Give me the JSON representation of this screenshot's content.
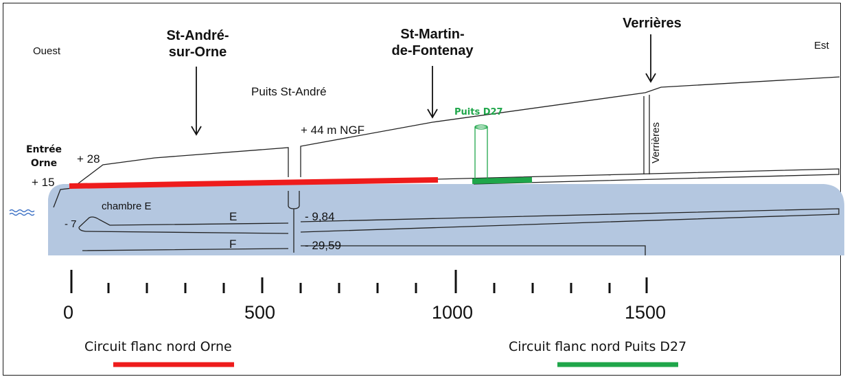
{
  "directions": {
    "west": "Ouest",
    "east": "Est"
  },
  "towns": {
    "st_andre": {
      "line1": "St-André-",
      "line2": "sur-Orne"
    },
    "st_martin": {
      "line1": "St-Martin-",
      "line2": "de-Fontenay"
    },
    "verrieres": "Verrières"
  },
  "labels": {
    "puits_st_andre": "Puits St-André",
    "elev_44": "+ 44 m NGF",
    "puits_d27": "Puits D27",
    "entree_orne_1": "Entrée",
    "entree_orne_2": "Orne",
    "elev_28": "+ 28",
    "elev_15": "+ 15",
    "chambre_e": "chambre E",
    "elev_minus7": "- 7",
    "level_e": "E",
    "level_f": "F",
    "depth_e": "- 9,84",
    "depth_f": "- 29,59",
    "verrieres_shaft": "Verrières"
  },
  "scale": {
    "ticks": [
      "0",
      "500",
      "1000",
      "1500"
    ]
  },
  "legend": {
    "orne": {
      "label": "Circuit flanc nord Orne",
      "color": "#ee1c1c"
    },
    "d27": {
      "label": "Circuit flanc nord Puits D27",
      "color": "#1fa64a"
    }
  },
  "colors": {
    "underground": "#b4c7e0",
    "shaft_green": "#1fa64a",
    "red": "#ee1c1c"
  }
}
